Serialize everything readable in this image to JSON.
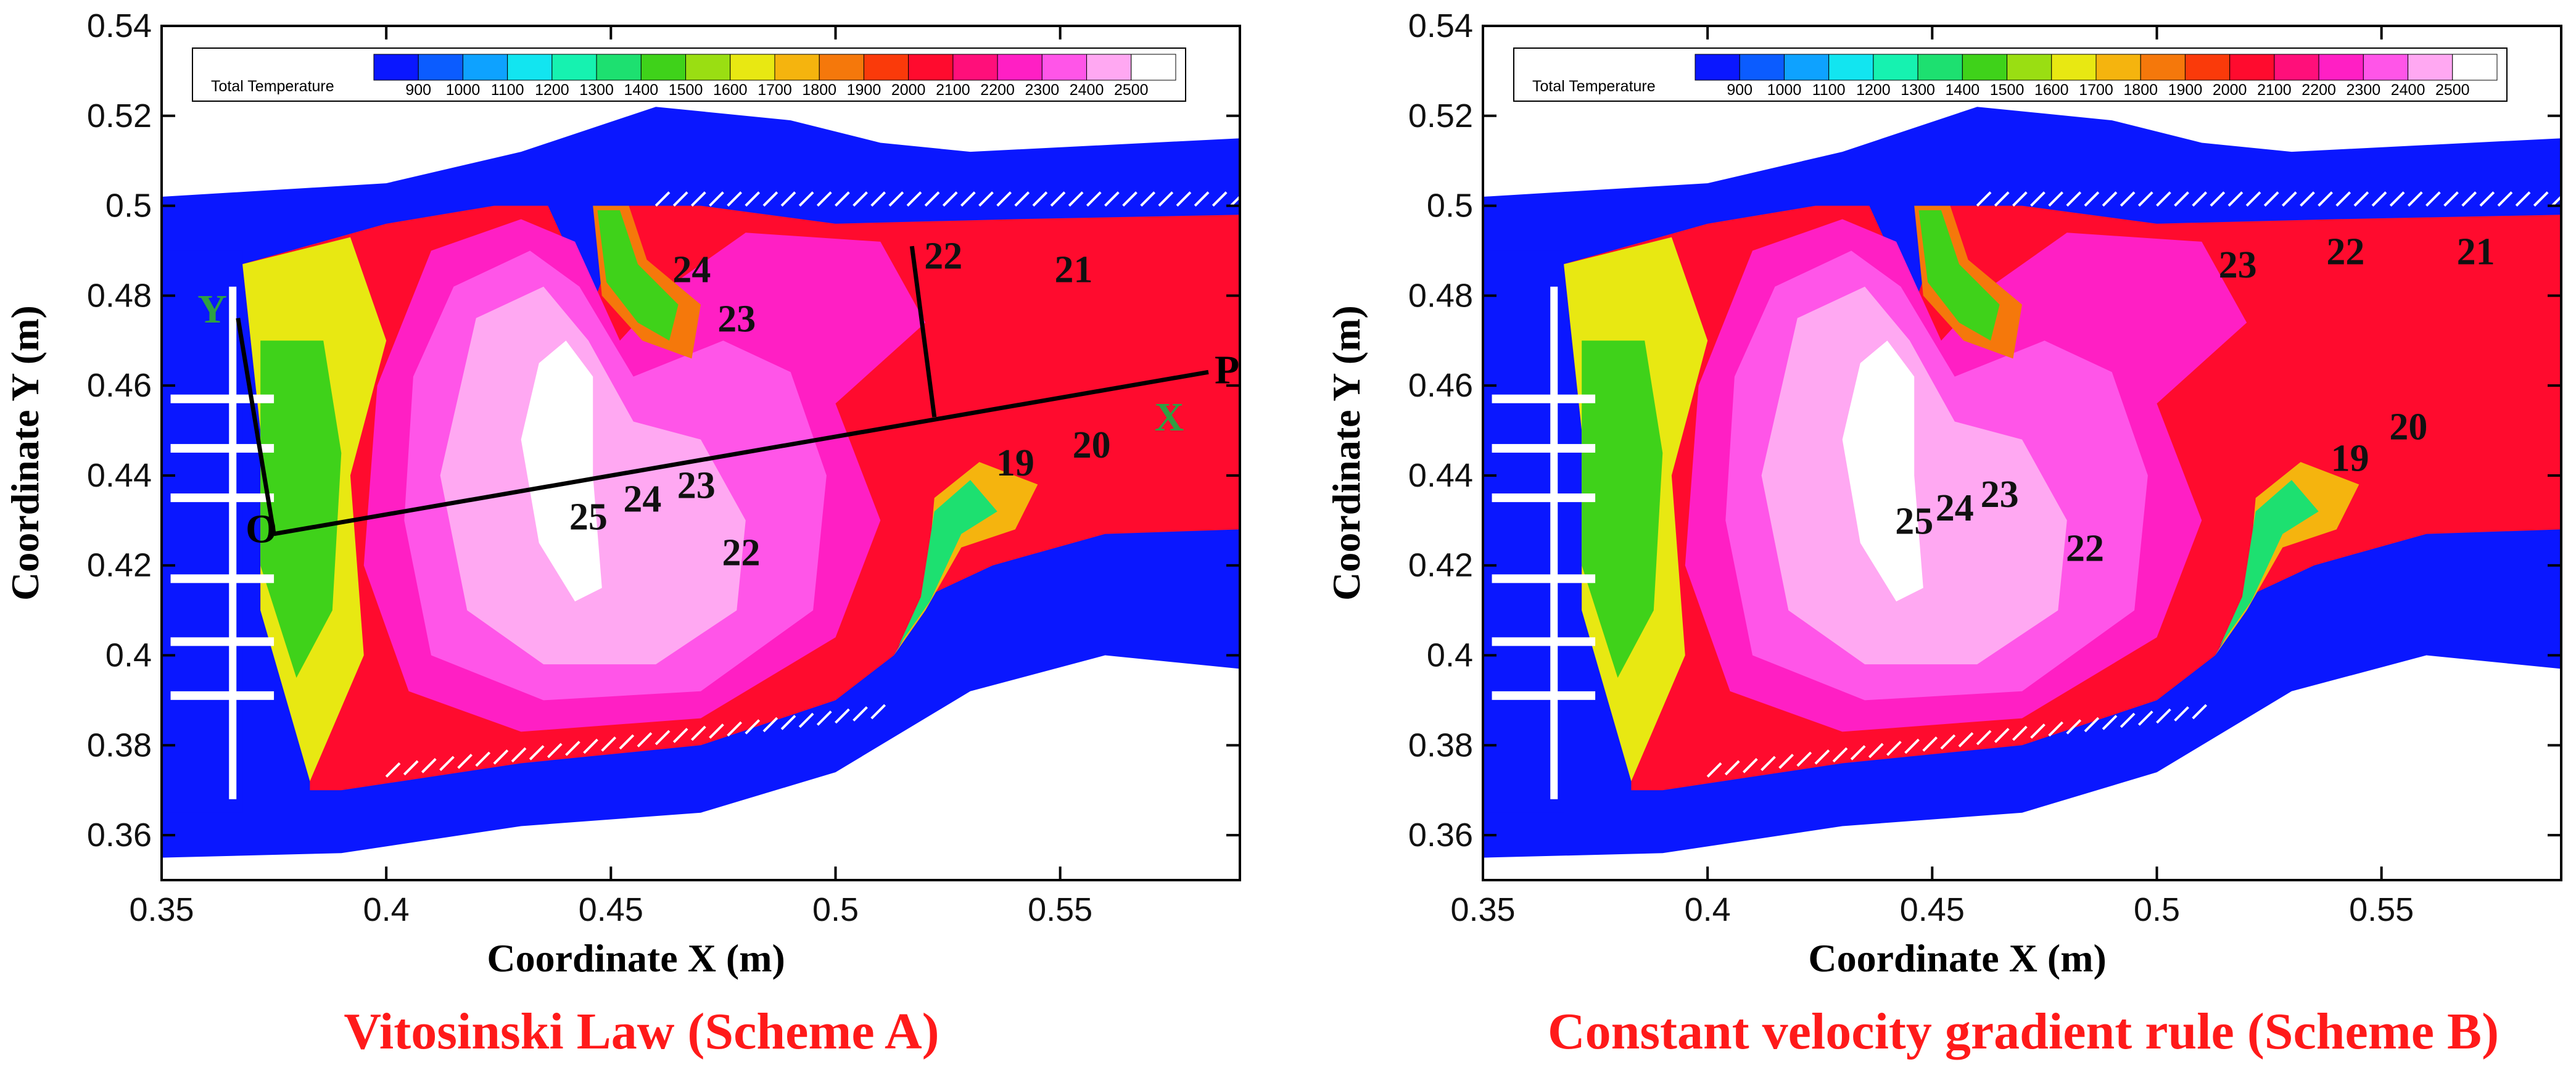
{
  "colors": {
    "background_fluid": "#0a17ff",
    "caption": "#ff1a1a",
    "axis_label_green": "#2ea043",
    "line_black": "#000000"
  },
  "legend": {
    "title": "Total Temperature",
    "ticks": [
      "900",
      "1000",
      "1100",
      "1200",
      "1300",
      "1400",
      "1500",
      "1600",
      "1700",
      "1800",
      "1900",
      "2000",
      "2100",
      "2200",
      "2300",
      "2400",
      "2500"
    ],
    "colors": [
      "#0a17ff",
      "#0b5cff",
      "#0ea2ff",
      "#12e5f0",
      "#16f2b0",
      "#1de070",
      "#3fd21a",
      "#9ade12",
      "#e8e812",
      "#f5b40e",
      "#f5780b",
      "#fa3a0a",
      "#ff0b2e",
      "#ff0f7a",
      "#ff1fc4",
      "#ff55e8",
      "#ffa8f2",
      "#ffffff"
    ]
  },
  "chart_data": [
    {
      "type": "heatmap",
      "title": "Vitosinski Law (Scheme A)",
      "xlabel": "Coordinate X (m)",
      "ylabel": "Coordinate Y (m)",
      "xlim": [
        0.35,
        0.59
      ],
      "ylim": [
        0.35,
        0.54
      ],
      "xticks": [
        "0.35",
        "0.4",
        "0.45",
        "0.5",
        "0.55"
      ],
      "yticks": [
        "0.36",
        "0.38",
        "0.4",
        "0.42",
        "0.44",
        "0.46",
        "0.48",
        "0.5",
        "0.52",
        "0.54"
      ],
      "variable": "Total Temperature",
      "contour_labels": [
        {
          "text": "24",
          "x": 0.468,
          "y": 0.483
        },
        {
          "text": "23",
          "x": 0.478,
          "y": 0.472
        },
        {
          "text": "22",
          "x": 0.524,
          "y": 0.486
        },
        {
          "text": "21",
          "x": 0.553,
          "y": 0.483
        },
        {
          "text": "19",
          "x": 0.54,
          "y": 0.44
        },
        {
          "text": "20",
          "x": 0.557,
          "y": 0.444
        },
        {
          "text": "25",
          "x": 0.445,
          "y": 0.428
        },
        {
          "text": "24",
          "x": 0.457,
          "y": 0.432
        },
        {
          "text": "23",
          "x": 0.469,
          "y": 0.435
        },
        {
          "text": "22",
          "x": 0.479,
          "y": 0.42
        }
      ],
      "reference_lines": {
        "origin_label": "O",
        "end_label": "P",
        "x_axis_label": "X",
        "y_axis_label": "Y",
        "origin": [
          0.375,
          0.427
        ],
        "end": [
          0.583,
          0.463
        ],
        "y_axis_end": [
          0.367,
          0.475
        ],
        "cross_section_start": [
          0.517,
          0.491
        ],
        "cross_section_end": [
          0.522,
          0.453
        ]
      }
    },
    {
      "type": "heatmap",
      "title": "Constant velocity gradient rule (Scheme B)",
      "xlabel": "Coordinate X (m)",
      "ylabel": "Coordinate Y (m)",
      "xlim": [
        0.35,
        0.59
      ],
      "ylim": [
        0.35,
        0.54
      ],
      "xticks": [
        "0.35",
        "0.4",
        "0.45",
        "0.5",
        "0.55"
      ],
      "yticks": [
        "0.36",
        "0.38",
        "0.4",
        "0.42",
        "0.44",
        "0.46",
        "0.48",
        "0.5",
        "0.52",
        "0.54"
      ],
      "variable": "Total Temperature",
      "contour_labels": [
        {
          "text": "23",
          "x": 0.518,
          "y": 0.484
        },
        {
          "text": "22",
          "x": 0.542,
          "y": 0.487
        },
        {
          "text": "21",
          "x": 0.571,
          "y": 0.487
        },
        {
          "text": "19",
          "x": 0.543,
          "y": 0.441
        },
        {
          "text": "20",
          "x": 0.556,
          "y": 0.448
        },
        {
          "text": "25",
          "x": 0.446,
          "y": 0.427
        },
        {
          "text": "24",
          "x": 0.455,
          "y": 0.43
        },
        {
          "text": "23",
          "x": 0.465,
          "y": 0.433
        },
        {
          "text": "22",
          "x": 0.484,
          "y": 0.421
        }
      ]
    }
  ]
}
